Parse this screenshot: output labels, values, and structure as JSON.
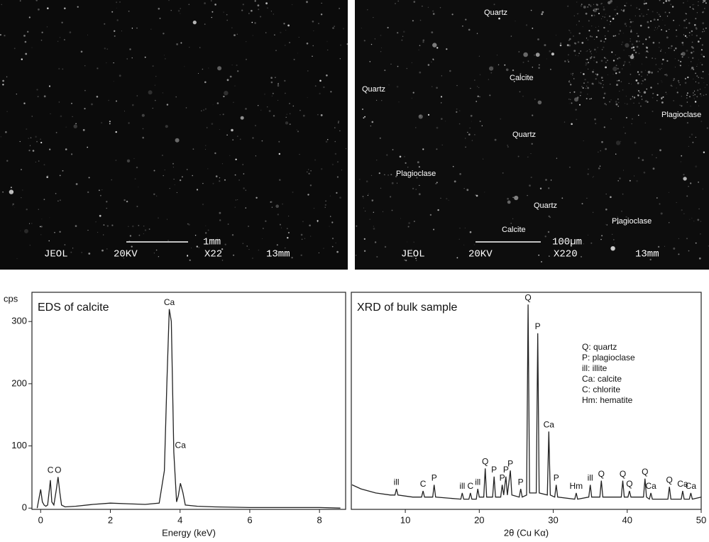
{
  "images": [
    {
      "overlay": [
        "JEOL",
        "20KV",
        ".",
        "X22",
        "13mm"
      ],
      "scale_bar": "1mm"
    },
    {
      "overlay": [
        "JEOL",
        "20KV",
        "X220",
        "13mm"
      ],
      "scale_bar": "100µm",
      "labels": [
        "Quartz",
        "Quartz",
        "Calcite",
        "Plagioclase",
        "Quartz",
        "Plagioclase",
        "Quartz",
        "Plagioclase",
        "Calcite"
      ]
    }
  ],
  "chart_data": [
    {
      "type": "line",
      "title": "EDS of calcite",
      "y_label": "cps",
      "x_label": "Energy (keV)",
      "x": [
        -0.1,
        0,
        0.05,
        0.1,
        0.15,
        0.2,
        0.25,
        0.28,
        0.32,
        0.38,
        0.45,
        0.5,
        0.55,
        0.6,
        0.7,
        1.0,
        1.5,
        2.0,
        2.5,
        3.0,
        3.4,
        3.55,
        3.62,
        3.69,
        3.75,
        3.82,
        3.9,
        3.95,
        4.01,
        4.08,
        4.15,
        4.5,
        5,
        6,
        7,
        8,
        8.6
      ],
      "series": [
        {
          "color": "#222222",
          "values": [
            0,
            30,
            10,
            5,
            3,
            5,
            30,
            45,
            10,
            5,
            30,
            50,
            25,
            5,
            2,
            3,
            6,
            8,
            7,
            6,
            8,
            60,
            200,
            320,
            300,
            90,
            10,
            20,
            40,
            25,
            5,
            3,
            2,
            1,
            1,
            1,
            0
          ]
        }
      ],
      "xlim": [
        -0.25,
        8.75
      ],
      "ylim": [
        -2,
        347
      ],
      "xticks": [
        0,
        2,
        4,
        6,
        8
      ],
      "yticks": [
        0,
        100,
        200,
        300
      ],
      "annotations": [
        {
          "text": "C",
          "x": 0.28
        },
        {
          "text": "O",
          "x": 0.5
        },
        {
          "text": "Ca",
          "x": 3.69
        },
        {
          "text": "Ca",
          "x": 4.01
        }
      ]
    },
    {
      "type": "line",
      "title": "XRD of bulk sample",
      "x_label": "2θ (Cu Kα)",
      "x": [
        2.8,
        4,
        6,
        8,
        8.6,
        8.8,
        9.0,
        11,
        12.2,
        12.4,
        12.6,
        13.7,
        13.9,
        14.1,
        17.5,
        17.7,
        17.9,
        18.6,
        18.8,
        19.0,
        19.6,
        19.8,
        20.0,
        20.6,
        20.8,
        21.0,
        21.8,
        22.0,
        22.2,
        22.9,
        23.1,
        23.3,
        23.6,
        23.8,
        24.2,
        24.4,
        25.4,
        25.6,
        25.8,
        26.4,
        26.6,
        26.8,
        27.7,
        27.9,
        28.1,
        29.2,
        29.4,
        29.6,
        30.2,
        30.4,
        30.6,
        32.9,
        33.1,
        33.3,
        34.8,
        35.0,
        35.2,
        36.3,
        36.5,
        36.7,
        39.2,
        39.4,
        39.6,
        40.1,
        40.3,
        40.5,
        42.2,
        42.4,
        42.6,
        43.0,
        43.2,
        43.4,
        45.5,
        45.7,
        45.9,
        47.3,
        47.5,
        47.7,
        48.4,
        48.6,
        48.8,
        50
      ],
      "series": [
        {
          "color": "#222222",
          "values": [
            12,
            10,
            8,
            7,
            7,
            10,
            7,
            6,
            6,
            9,
            6,
            6,
            12,
            6,
            5,
            8,
            5,
            5,
            8,
            5,
            5,
            10,
            6,
            6,
            20,
            6,
            6,
            16,
            6,
            6,
            12,
            7,
            16,
            7,
            19,
            7,
            6,
            10,
            6,
            7,
            100,
            8,
            8,
            86,
            8,
            7,
            38,
            7,
            6,
            12,
            6,
            5,
            8,
            5,
            6,
            12,
            6,
            6,
            14,
            6,
            6,
            14,
            6,
            6,
            9,
            6,
            6,
            15,
            6,
            5,
            8,
            5,
            5,
            11,
            5,
            5,
            9,
            5,
            5,
            8,
            5,
            6
          ]
        }
      ],
      "xlim": [
        2.7,
        50
      ],
      "ylim": [
        0,
        106
      ],
      "xticks": [
        10,
        20,
        30,
        40,
        50
      ],
      "annotations": [
        {
          "text": "ill",
          "x": 8.8
        },
        {
          "text": "C",
          "x": 12.4
        },
        {
          "text": "P",
          "x": 13.9
        },
        {
          "text": "ill",
          "x": 17.7
        },
        {
          "text": "C",
          "x": 18.8
        },
        {
          "text": "ill",
          "x": 19.8
        },
        {
          "text": "Q",
          "x": 20.8
        },
        {
          "text": "P",
          "x": 22.0
        },
        {
          "text": "P",
          "x": 23.1
        },
        {
          "text": "P",
          "x": 23.6
        },
        {
          "text": "P",
          "x": 24.2
        },
        {
          "text": "P",
          "x": 25.6
        },
        {
          "text": "Q",
          "x": 26.6
        },
        {
          "text": "P",
          "x": 27.9
        },
        {
          "text": "Ca",
          "x": 29.4
        },
        {
          "text": "P",
          "x": 30.4
        },
        {
          "text": "Hm",
          "x": 33.1
        },
        {
          "text": "ill",
          "x": 35.0
        },
        {
          "text": "Q",
          "x": 36.5
        },
        {
          "text": "Q",
          "x": 39.4
        },
        {
          "text": "Q",
          "x": 40.3
        },
        {
          "text": "Q",
          "x": 42.4
        },
        {
          "text": "Ca",
          "x": 43.2
        },
        {
          "text": "Q",
          "x": 45.7
        },
        {
          "text": "Ca",
          "x": 47.5
        },
        {
          "text": "Ca",
          "x": 48.6
        }
      ],
      "legend_text": [
        "Q: quartz",
        "P: plagioclase",
        "ill: illite",
        "Ca: calcite",
        "C: chlorite",
        "Hm: hematite"
      ]
    }
  ]
}
